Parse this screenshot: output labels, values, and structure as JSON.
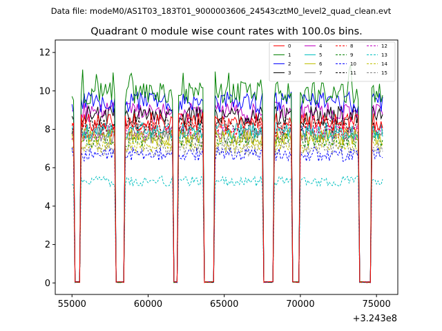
{
  "suptitle": "Data file: modeM0/AS1T03_183T01_9000003606_24543cztM0_level2_quad_clean.evt",
  "chart_data": {
    "type": "line",
    "title": "Quadrant 0 module wise count rates with 100.0s bins.",
    "xlabel": "",
    "ylabel": "",
    "x_offset_label": "+3.243e8",
    "xlim": [
      53900,
      76400
    ],
    "ylim": [
      -0.6,
      12.65
    ],
    "x_ticks": [
      55000,
      60000,
      65000,
      70000,
      75000
    ],
    "x_tick_labels": [
      "55000",
      "60000",
      "65000",
      "70000",
      "75000"
    ],
    "y_ticks": [
      0,
      2,
      4,
      6,
      8,
      10,
      12
    ],
    "y_tick_labels": [
      "0",
      "2",
      "4",
      "6",
      "8",
      "10",
      "12"
    ],
    "bin_seconds": 100,
    "x_start": 55000,
    "x_end": 75400,
    "gaps": [
      {
        "start": 55200,
        "end": 55500
      },
      {
        "start": 57900,
        "end": 58400
      },
      {
        "start": 61700,
        "end": 61950
      },
      {
        "start": 63700,
        "end": 64300
      },
      {
        "start": 67600,
        "end": 68200
      },
      {
        "start": 69500,
        "end": 69900
      },
      {
        "start": 73900,
        "end": 74600
      }
    ],
    "legend_position": "top-right",
    "series": [
      {
        "name": "0",
        "level": 8.4,
        "color": "#ff0000",
        "dashed": false
      },
      {
        "name": "1",
        "level": 9.9,
        "color": "#008000",
        "dashed": false
      },
      {
        "name": "2",
        "level": 9.4,
        "color": "#0000ff",
        "dashed": false
      },
      {
        "name": "3",
        "level": 8.7,
        "color": "#000000",
        "dashed": false
      },
      {
        "name": "4",
        "level": 8.9,
        "color": "#bf00bf",
        "dashed": false
      },
      {
        "name": "5",
        "level": 7.9,
        "color": "#00bfbf",
        "dashed": false
      },
      {
        "name": "6",
        "level": 7.6,
        "color": "#bfbf00",
        "dashed": false
      },
      {
        "name": "7",
        "level": 7.7,
        "color": "#808080",
        "dashed": false
      },
      {
        "name": "8",
        "level": 8.0,
        "color": "#ff0000",
        "dashed": true
      },
      {
        "name": "9",
        "level": 7.5,
        "color": "#008000",
        "dashed": true
      },
      {
        "name": "10",
        "level": 6.7,
        "color": "#0000ff",
        "dashed": true
      },
      {
        "name": "11",
        "level": 8.2,
        "color": "#000000",
        "dashed": true
      },
      {
        "name": "12",
        "level": 7.8,
        "color": "#bf00bf",
        "dashed": true
      },
      {
        "name": "13",
        "level": 5.3,
        "color": "#00bfbf",
        "dashed": true
      },
      {
        "name": "14",
        "level": 7.2,
        "color": "#bfbf00",
        "dashed": true
      },
      {
        "name": "15",
        "level": 7.0,
        "color": "#808080",
        "dashed": true
      }
    ]
  }
}
